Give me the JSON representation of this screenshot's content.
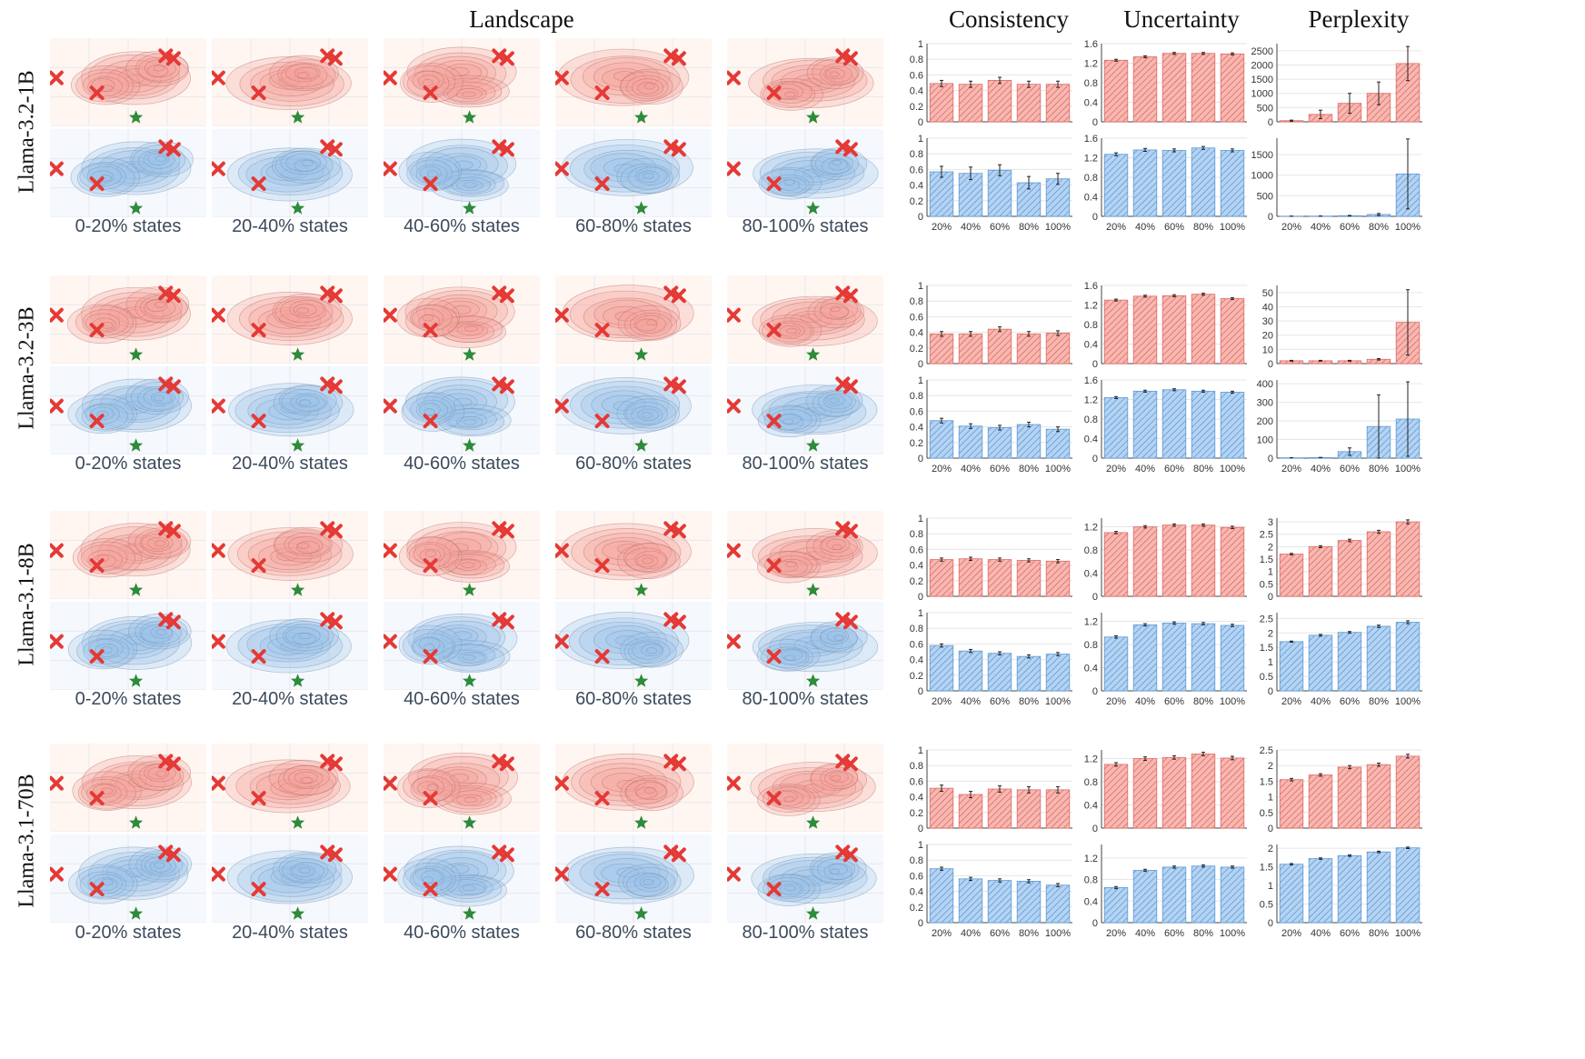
{
  "headers": {
    "landscape": "Landscape",
    "consistency": "Consistency",
    "uncertainty": "Uncertainty",
    "perplexity": "Perplexity"
  },
  "stage_labels": [
    "0-20% states",
    "20-40% states",
    "40-60% states",
    "60-80% states",
    "80-100% states"
  ],
  "colors": {
    "red_fill": "#f4a09a",
    "red_stroke": "#e06a62",
    "blue_fill": "#9cc3ea",
    "blue_stroke": "#5d9bd8",
    "red_bg": "#fff6f1",
    "blue_bg": "#f5f8fd",
    "marker_x": "#e53935",
    "marker_star": "#2e8b3a"
  },
  "chart_data": [
    {
      "type": "bar",
      "model": "Llama-3.2-1B",
      "categories": [
        "20%",
        "40%",
        "60%",
        "80%",
        "100%"
      ],
      "consistency": {
        "red": {
          "values": [
            0.49,
            0.48,
            0.53,
            0.48,
            0.48
          ],
          "errors": [
            0.04,
            0.04,
            0.04,
            0.04,
            0.04
          ],
          "ylim": [
            0,
            1
          ],
          "ticks": [
            "0",
            "0.2",
            "0.4",
            "0.6",
            "0.8",
            "1"
          ]
        },
        "blue": {
          "values": [
            0.57,
            0.55,
            0.59,
            0.43,
            0.48
          ],
          "errors": [
            0.07,
            0.08,
            0.07,
            0.08,
            0.07
          ],
          "ylim": [
            0,
            1
          ],
          "ticks": [
            "0",
            "0.2",
            "0.4",
            "0.6",
            "0.8",
            "1"
          ]
        }
      },
      "uncertainty": {
        "red": {
          "values": [
            1.26,
            1.33,
            1.4,
            1.4,
            1.39
          ],
          "errors": [
            0.02,
            0.02,
            0.02,
            0.02,
            0.02
          ],
          "ylim": [
            0,
            1.6
          ],
          "ticks": [
            "0",
            "0.4",
            "0.8",
            "1.2",
            "1.6"
          ]
        },
        "blue": {
          "values": [
            1.27,
            1.36,
            1.35,
            1.4,
            1.35
          ],
          "errors": [
            0.03,
            0.03,
            0.03,
            0.03,
            0.03
          ],
          "ylim": [
            0,
            1.6
          ],
          "ticks": [
            "0",
            "0.4",
            "0.8",
            "1.2",
            "1.6"
          ]
        }
      },
      "perplexity": {
        "red": {
          "values": [
            40,
            260,
            650,
            1000,
            2050
          ],
          "errors": [
            20,
            150,
            350,
            400,
            600
          ],
          "ylim": [
            0,
            2750
          ],
          "ticks": [
            "0",
            "500",
            "1000",
            "1500",
            "2000",
            "2500"
          ]
        },
        "blue": {
          "values": [
            4,
            6,
            15,
            45,
            1030
          ],
          "errors": [
            2,
            3,
            8,
            25,
            850
          ],
          "ylim": [
            0,
            1900
          ],
          "ticks": [
            "0",
            "500",
            "1000",
            "1500"
          ]
        }
      }
    },
    {
      "type": "bar",
      "model": "Llama-3.2-3B",
      "categories": [
        "20%",
        "40%",
        "60%",
        "80%",
        "100%"
      ],
      "consistency": {
        "red": {
          "values": [
            0.38,
            0.38,
            0.44,
            0.38,
            0.39
          ],
          "errors": [
            0.03,
            0.03,
            0.03,
            0.03,
            0.03
          ],
          "ylim": [
            0,
            1
          ],
          "ticks": [
            "0",
            "0.2",
            "0.4",
            "0.6",
            "0.8",
            "1"
          ]
        },
        "blue": {
          "values": [
            0.48,
            0.41,
            0.39,
            0.43,
            0.37
          ],
          "errors": [
            0.03,
            0.03,
            0.03,
            0.03,
            0.03
          ],
          "ylim": [
            0,
            1
          ],
          "ticks": [
            "0",
            "0.2",
            "0.4",
            "0.6",
            "0.8",
            "1"
          ]
        }
      },
      "uncertainty": {
        "red": {
          "values": [
            1.3,
            1.38,
            1.39,
            1.42,
            1.33
          ],
          "errors": [
            0.02,
            0.02,
            0.02,
            0.02,
            0.02
          ],
          "ylim": [
            0,
            1.6
          ],
          "ticks": [
            "0",
            "0.4",
            "0.8",
            "1.2",
            "1.6"
          ]
        },
        "blue": {
          "values": [
            1.24,
            1.37,
            1.4,
            1.37,
            1.35
          ],
          "errors": [
            0.02,
            0.02,
            0.02,
            0.02,
            0.02
          ],
          "ylim": [
            0,
            1.6
          ],
          "ticks": [
            "0",
            "0.4",
            "0.8",
            "1.2",
            "1.6"
          ]
        }
      },
      "perplexity": {
        "red": {
          "values": [
            2,
            2,
            2,
            3,
            29
          ],
          "errors": [
            0.3,
            0.3,
            0.3,
            0.5,
            23
          ],
          "ylim": [
            0,
            55
          ],
          "ticks": [
            "0",
            "10",
            "20",
            "30",
            "40",
            "50"
          ]
        },
        "blue": {
          "values": [
            2,
            3,
            35,
            170,
            210
          ],
          "errors": [
            0.5,
            1,
            20,
            170,
            200
          ],
          "ylim": [
            0,
            420
          ],
          "ticks": [
            "0",
            "100",
            "200",
            "300",
            "400"
          ]
        }
      }
    },
    {
      "type": "bar",
      "model": "Llama-3.1-8B",
      "categories": [
        "20%",
        "40%",
        "60%",
        "80%",
        "100%"
      ],
      "consistency": {
        "red": {
          "values": [
            0.47,
            0.48,
            0.47,
            0.46,
            0.45
          ],
          "errors": [
            0.02,
            0.02,
            0.02,
            0.02,
            0.02
          ],
          "ylim": [
            0,
            1
          ],
          "ticks": [
            "0",
            "0.2",
            "0.4",
            "0.6",
            "0.8",
            "1"
          ]
        },
        "blue": {
          "values": [
            0.58,
            0.51,
            0.48,
            0.44,
            0.47
          ],
          "errors": [
            0.02,
            0.02,
            0.02,
            0.02,
            0.02
          ],
          "ylim": [
            0,
            1
          ],
          "ticks": [
            "0",
            "0.2",
            "0.4",
            "0.6",
            "0.8",
            "1"
          ]
        }
      },
      "uncertainty": {
        "red": {
          "values": [
            1.1,
            1.2,
            1.23,
            1.23,
            1.19
          ],
          "errors": [
            0.02,
            0.02,
            0.02,
            0.02,
            0.02
          ],
          "ylim": [
            0,
            1.35
          ],
          "ticks": [
            "0",
            "0.4",
            "0.8",
            "1.2"
          ]
        },
        "blue": {
          "values": [
            0.93,
            1.14,
            1.17,
            1.16,
            1.13
          ],
          "errors": [
            0.02,
            0.02,
            0.02,
            0.02,
            0.02
          ],
          "ylim": [
            0,
            1.35
          ],
          "ticks": [
            "0",
            "0.4",
            "0.8",
            "1.2"
          ]
        }
      },
      "perplexity": {
        "red": {
          "values": [
            1.7,
            2.0,
            2.25,
            2.6,
            3.0
          ],
          "errors": [
            0.03,
            0.04,
            0.05,
            0.06,
            0.08
          ],
          "ylim": [
            0,
            3.15
          ],
          "ticks": [
            "0",
            "0.5",
            "1",
            "1.5",
            "2",
            "2.5",
            "3"
          ]
        },
        "blue": {
          "values": [
            1.7,
            1.92,
            2.02,
            2.23,
            2.37
          ],
          "errors": [
            0.02,
            0.03,
            0.03,
            0.04,
            0.05
          ],
          "ylim": [
            0,
            2.7
          ],
          "ticks": [
            "0",
            "0.5",
            "1",
            "1.5",
            "2",
            "2.5"
          ]
        }
      }
    },
    {
      "type": "bar",
      "model": "Llama-3.1-70B",
      "categories": [
        "20%",
        "40%",
        "60%",
        "80%",
        "100%"
      ],
      "consistency": {
        "red": {
          "values": [
            0.51,
            0.43,
            0.5,
            0.49,
            0.49
          ],
          "errors": [
            0.04,
            0.04,
            0.04,
            0.04,
            0.04
          ],
          "ylim": [
            0,
            1
          ],
          "ticks": [
            "0",
            "0.2",
            "0.4",
            "0.6",
            "0.8",
            "1"
          ]
        },
        "blue": {
          "values": [
            0.69,
            0.56,
            0.54,
            0.53,
            0.48
          ],
          "errors": [
            0.02,
            0.02,
            0.02,
            0.02,
            0.02
          ],
          "ylim": [
            0,
            1
          ],
          "ticks": [
            "0",
            "0.2",
            "0.4",
            "0.6",
            "0.8",
            "1"
          ]
        }
      },
      "uncertainty": {
        "red": {
          "values": [
            1.1,
            1.2,
            1.22,
            1.28,
            1.21
          ],
          "errors": [
            0.03,
            0.03,
            0.03,
            0.03,
            0.03
          ],
          "ylim": [
            0,
            1.35
          ],
          "ticks": [
            "0",
            "0.4",
            "0.8",
            "1.2"
          ]
        },
        "blue": {
          "values": [
            0.65,
            0.97,
            1.03,
            1.05,
            1.03
          ],
          "errors": [
            0.02,
            0.02,
            0.02,
            0.02,
            0.02
          ],
          "ylim": [
            0,
            1.45
          ],
          "ticks": [
            "0",
            "0.4",
            "0.8",
            "1.2"
          ]
        }
      },
      "perplexity": {
        "red": {
          "values": [
            1.55,
            1.7,
            1.95,
            2.03,
            2.3
          ],
          "errors": [
            0.04,
            0.04,
            0.05,
            0.05,
            0.06
          ],
          "ylim": [
            0,
            2.5
          ],
          "ticks": [
            "0",
            "0.5",
            "1",
            "1.5",
            "2",
            "2.5"
          ]
        },
        "blue": {
          "values": [
            1.57,
            1.72,
            1.8,
            1.9,
            2.01
          ],
          "errors": [
            0.02,
            0.02,
            0.02,
            0.02,
            0.02
          ],
          "ylim": [
            0,
            2.1
          ],
          "ticks": [
            "0",
            "0.5",
            "1",
            "1.5",
            "2"
          ]
        }
      }
    }
  ]
}
